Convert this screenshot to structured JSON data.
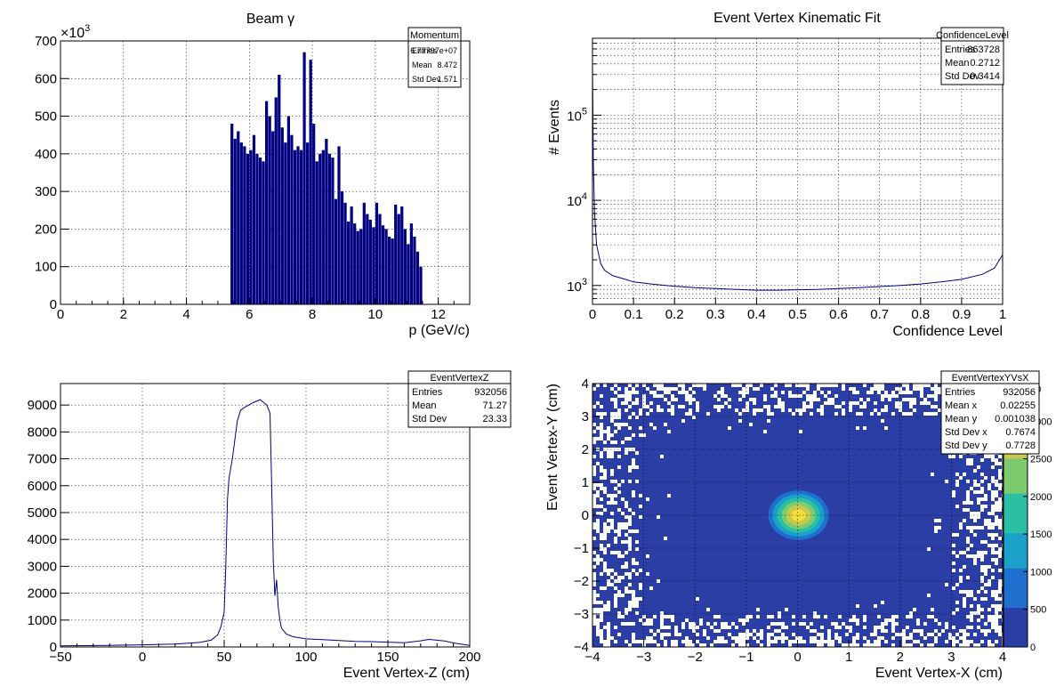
{
  "colors": {
    "histogram": "#000080",
    "background_2d": "#2a3ea6",
    "peak": "#f5e03b",
    "palette": [
      "#2a3ea6",
      "#1f6fce",
      "#1aa0c9",
      "#2bbfa3",
      "#7dcb6e",
      "#c7c94f",
      "#f5e03b"
    ]
  },
  "chart_data": [
    {
      "type": "bar",
      "name": "momentum",
      "title": "Beam γ",
      "xlabel": "p (GeV/c)",
      "ylabel": "",
      "xlim": [
        0,
        13
      ],
      "ylim": [
        0,
        700
      ],
      "y_multiplier": "×10",
      "y_multiplier_exp": "3",
      "x_ticks": [
        "0",
        "2",
        "4",
        "6",
        "8",
        "10",
        "12"
      ],
      "y_ticks": [
        "0",
        "100",
        "200",
        "300",
        "400",
        "500",
        "600",
        "700"
      ],
      "x": [
        5.4,
        5.5,
        5.6,
        5.7,
        5.8,
        5.9,
        6.0,
        6.1,
        6.2,
        6.3,
        6.4,
        6.5,
        6.6,
        6.7,
        6.8,
        6.9,
        7.0,
        7.1,
        7.2,
        7.3,
        7.4,
        7.5,
        7.6,
        7.7,
        7.8,
        7.9,
        8.0,
        8.1,
        8.2,
        8.3,
        8.4,
        8.5,
        8.6,
        8.7,
        8.8,
        8.9,
        9.0,
        9.1,
        9.2,
        9.3,
        9.4,
        9.5,
        9.6,
        9.7,
        9.8,
        9.9,
        10.0,
        10.1,
        10.2,
        10.3,
        10.4,
        10.5,
        10.6,
        10.7,
        10.8,
        10.9,
        11.0,
        11.1,
        11.2,
        11.3,
        11.4
      ],
      "values": [
        480,
        440,
        460,
        430,
        420,
        400,
        410,
        450,
        400,
        390,
        380,
        540,
        500,
        460,
        550,
        610,
        470,
        430,
        500,
        450,
        410,
        420,
        410,
        670,
        430,
        650,
        480,
        380,
        400,
        410,
        440,
        400,
        390,
        280,
        420,
        300,
        270,
        220,
        260,
        215,
        195,
        200,
        270,
        240,
        225,
        205,
        270,
        240,
        210,
        200,
        180,
        175,
        265,
        240,
        260,
        200,
        160,
        215,
        180,
        140,
        100
      ],
      "stats": {
        "title": "Momentum",
        "rows": [
          [
            "Entries",
            "6.77797e+07"
          ],
          [
            "Mean",
            "8.472"
          ],
          [
            "Std Dev",
            "1.571"
          ]
        ]
      }
    },
    {
      "type": "line",
      "name": "confidence",
      "title": "Event Vertex Kinematic Fit",
      "xlabel": "Confidence Level",
      "ylabel": "# Events",
      "log_y": true,
      "xlim": [
        0,
        1
      ],
      "ylim": [
        600,
        800000
      ],
      "x_ticks": [
        "0",
        "0.1",
        "0.2",
        "0.3",
        "0.4",
        "0.5",
        "0.6",
        "0.7",
        "0.8",
        "0.9",
        "1"
      ],
      "y_ticks": [
        {
          "base": "10",
          "exp": "3",
          "value": 1000
        },
        {
          "base": "10",
          "exp": "4",
          "value": 10000
        },
        {
          "base": "10",
          "exp": "5",
          "value": 100000
        }
      ],
      "x": [
        0.0,
        0.002,
        0.005,
        0.01,
        0.02,
        0.03,
        0.05,
        0.08,
        0.1,
        0.15,
        0.2,
        0.25,
        0.3,
        0.35,
        0.4,
        0.45,
        0.5,
        0.55,
        0.6,
        0.65,
        0.7,
        0.75,
        0.8,
        0.85,
        0.9,
        0.95,
        0.98,
        1.0
      ],
      "values": [
        400000,
        30000,
        7000,
        3000,
        1800,
        1500,
        1300,
        1180,
        1100,
        1030,
        980,
        940,
        920,
        900,
        880,
        880,
        890,
        900,
        920,
        940,
        970,
        1000,
        1040,
        1100,
        1180,
        1350,
        1600,
        2300
      ],
      "stats": {
        "title": "ConfidenceLevel",
        "rows": [
          [
            "Entries",
            "863728"
          ],
          [
            "Mean",
            "0.2712"
          ],
          [
            "Std Dev",
            "0.3414"
          ]
        ]
      }
    },
    {
      "type": "line",
      "name": "vertexz",
      "title": "",
      "xlabel": "Event Vertex-Z (cm)",
      "ylabel": "",
      "xlim": [
        -50,
        200
      ],
      "ylim": [
        0,
        9800
      ],
      "x_ticks": [
        "−50",
        "0",
        "50",
        "100",
        "150",
        "200"
      ],
      "y_ticks": [
        "0",
        "1000",
        "2000",
        "3000",
        "4000",
        "5000",
        "6000",
        "7000",
        "8000",
        "9000"
      ],
      "x": [
        -50,
        -20,
        0,
        20,
        35,
        42,
        46,
        48,
        50,
        51,
        52,
        53,
        55,
        58,
        60,
        62,
        65,
        68,
        70,
        72,
        74,
        76,
        78,
        79,
        80,
        81,
        82,
        83,
        84,
        85,
        88,
        92,
        100,
        110,
        120,
        130,
        140,
        150,
        160,
        170,
        175,
        180,
        185,
        190,
        200
      ],
      "values": [
        40,
        60,
        80,
        110,
        170,
        250,
        450,
        750,
        1300,
        3000,
        5500,
        6300,
        7000,
        8400,
        8800,
        8900,
        9000,
        9100,
        9150,
        9200,
        9100,
        9000,
        8700,
        6000,
        3200,
        1900,
        2500,
        1500,
        1000,
        700,
        480,
        380,
        300,
        270,
        240,
        210,
        200,
        180,
        160,
        230,
        280,
        250,
        220,
        150,
        60
      ],
      "stats": {
        "title": "EventVertexZ",
        "rows": [
          [
            "Entries",
            "932056"
          ],
          [
            "Mean",
            "71.27"
          ],
          [
            "Std Dev",
            "23.33"
          ]
        ]
      }
    },
    {
      "type": "heatmap",
      "name": "vertexxy",
      "title": "",
      "xlabel": "Event Vertex-X (cm)",
      "ylabel": "Event Vertex-Y (cm)",
      "xlim": [
        -4,
        4
      ],
      "ylim": [
        -4,
        4
      ],
      "zlim": [
        0,
        3500
      ],
      "x_ticks": [
        "−4",
        "−3",
        "−2",
        "−1",
        "0",
        "1",
        "2",
        "3",
        "4"
      ],
      "y_ticks": [
        "−4",
        "−3",
        "−2",
        "−1",
        "0",
        "1",
        "2",
        "3",
        "4"
      ],
      "z_ticks": [
        "0",
        "500",
        "1000",
        "1500",
        "2000",
        "2500",
        "3000"
      ],
      "z_tick_values": [
        0,
        500,
        1000,
        1500,
        2000,
        2500,
        3000
      ],
      "z_top_label": "00",
      "peak": {
        "x": 0.02,
        "y": 0.0,
        "value": 3500
      },
      "stats": {
        "title": "EventVertexYVsX",
        "rows": [
          [
            "Entries",
            "932056"
          ],
          [
            "Mean x",
            "0.02255"
          ],
          [
            "Mean y",
            "0.001038"
          ],
          [
            "Std Dev x",
            "0.7674"
          ],
          [
            "Std Dev y",
            "0.7728"
          ]
        ]
      }
    }
  ]
}
